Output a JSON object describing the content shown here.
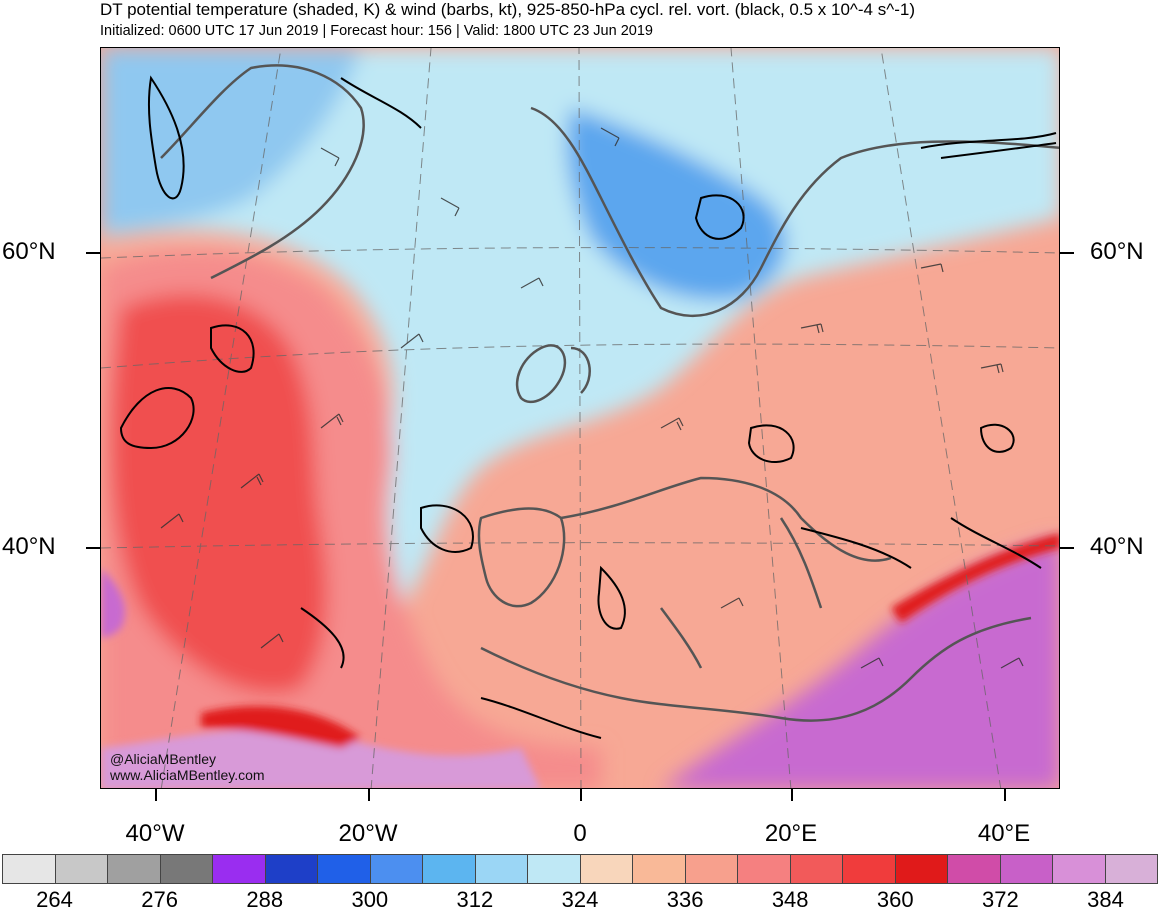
{
  "header": {
    "title": "DT potential temperature (shaded, K) & wind (barbs, kt), 925-850-hPa cycl. rel. vort. (black, 0.5 x 10^-4 s^-1)",
    "subtitle": "Initialized: 0600 UTC 17 Jun 2019 | Forecast hour: 156 | Valid: 1800 UTC 23 Jun 2019"
  },
  "axes": {
    "lat_labels": [
      "60°N",
      "40°N"
    ],
    "lon_labels": [
      "40°W",
      "20°W",
      "0",
      "20°E",
      "40°E"
    ]
  },
  "credit": {
    "handle": "@AliciaMBentley",
    "site": "www.AliciaMBentley.com"
  },
  "colorbar": {
    "colors": [
      "#e6e6e6",
      "#c8c8c8",
      "#a0a0a0",
      "#787878",
      "#9a2df0",
      "#1e3fc8",
      "#2060e8",
      "#4c8ff0",
      "#5cb5f0",
      "#9bd6f5",
      "#bfe8f5",
      "#f8d6bb",
      "#f9b998",
      "#f7a08d",
      "#f58080",
      "#f25a5a",
      "#f03c3c",
      "#e01a1a",
      "#d04ca8",
      "#c860c8",
      "#d890d8",
      "#d8b0d8"
    ],
    "labels": [
      "264",
      "276",
      "288",
      "300",
      "312",
      "324",
      "336",
      "348",
      "360",
      "372",
      "384"
    ]
  },
  "map": {
    "fields": [
      {
        "name": "cold-northwest",
        "color": "#8fc8f0"
      },
      {
        "name": "cool-north-atlantic",
        "color": "#bfe8f5"
      },
      {
        "name": "warm-atlantic-tongue",
        "color": "#f58c8c"
      },
      {
        "name": "hot-atlantic-core",
        "color": "#f05050"
      },
      {
        "name": "warm-europe",
        "color": "#f7a895"
      },
      {
        "name": "cold-scandinavia",
        "color": "#5ba6ee"
      },
      {
        "name": "hot-africa-mideast",
        "color": "#c86ad0"
      },
      {
        "name": "very-hot-sahara",
        "color": "#d89ad8"
      }
    ]
  }
}
